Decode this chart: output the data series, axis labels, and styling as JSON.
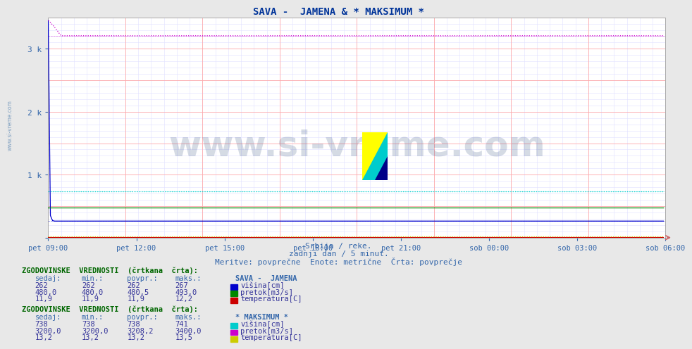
{
  "title": "SAVA -  JAMENA & * MAKSIMUM *",
  "subtitle1": "Srbija / reke.",
  "subtitle2": "zadnji dan / 5 minut.",
  "subtitle3": "Meritve: povprečne  Enote: metrične  Črta: povprečje",
  "xlabel_ticks": [
    "pet 09:00",
    "pet 12:00",
    "pet 15:00",
    "pet 18:00",
    "pet 21:00",
    "sob 00:00",
    "sob 03:00",
    "sob 06:00"
  ],
  "ylim": [
    0,
    3500
  ],
  "xlim": [
    0,
    288
  ],
  "bg_color": "#e8e8e8",
  "plot_bg_color": "#ffffff",
  "grid_color_major": "#ffaaaa",
  "grid_color_minor": "#ffe0e0",
  "grid_color_minor2": "#e0e0ff",
  "watermark_text": "www.si-vreme.com",
  "station1_name": "SAVA -  JAMENA",
  "station2_name": "* MAKSIMUM *",
  "sava_visina_color": "#0000cc",
  "sava_pretok_color": "#008800",
  "sava_temp_color": "#cc0000",
  "maks_visina_color": "#00cccc",
  "maks_pretok_color": "#cc00cc",
  "maks_temp_color": "#cccc00",
  "sava_visina_val": 262,
  "sava_pretok_val": 480.0,
  "sava_temp_val": 11.9,
  "maks_visina_val": 738,
  "maks_pretok_val": 3208.2,
  "maks_temp_val": 13.2,
  "n_points": 288,
  "title_color": "#003399",
  "subtitle_color": "#3366aa",
  "axis_label_color": "#3366aa",
  "table_header_color": "#006600",
  "row_data_color": "#333399",
  "hdr_color": "#3366aa"
}
